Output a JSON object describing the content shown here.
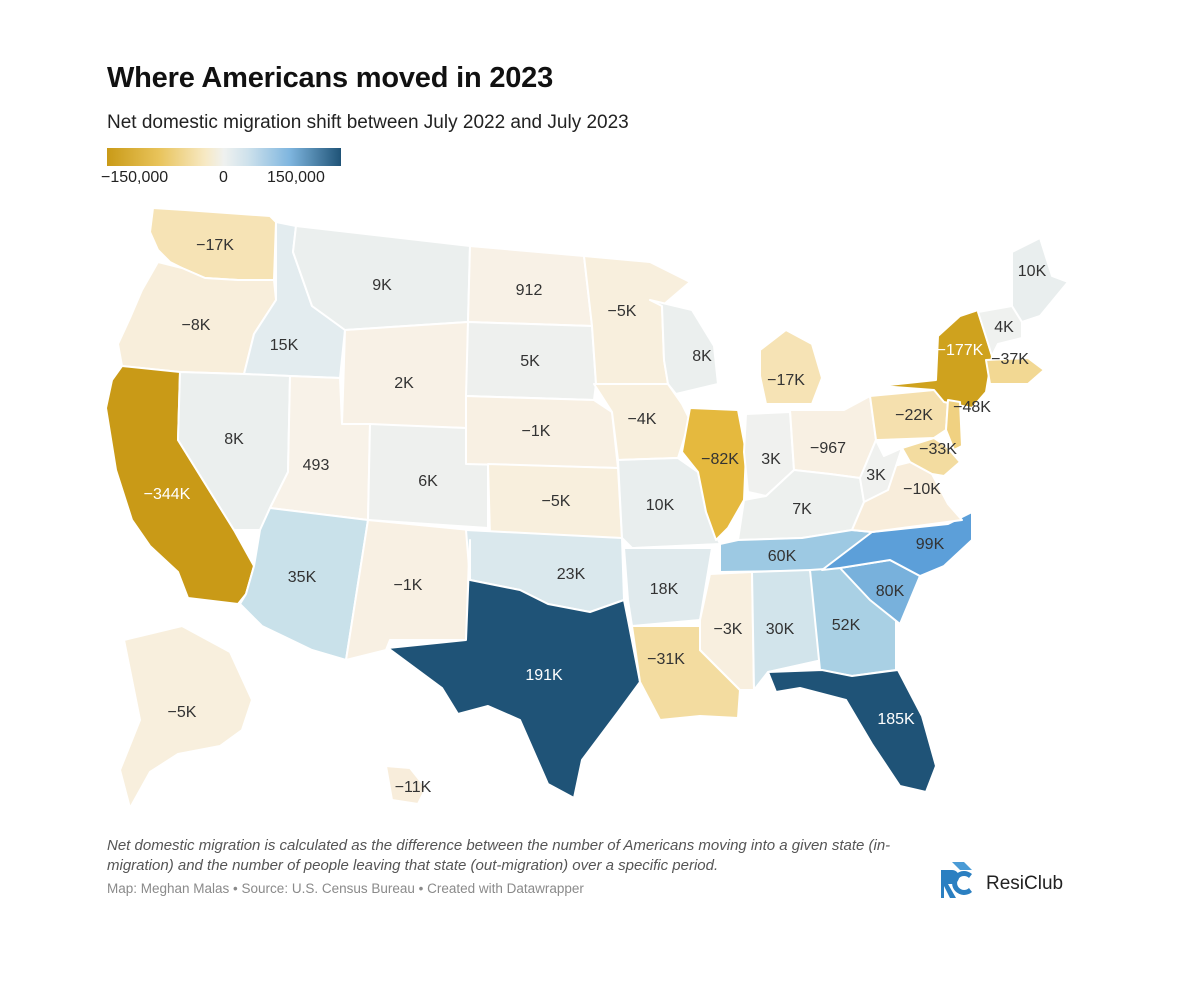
{
  "title": "Where Americans moved in 2023",
  "subtitle": "Net domestic migration shift between July 2022 and July 2023",
  "legend": {
    "min_label": "−150,000",
    "mid_label": "0",
    "max_label": "150,000",
    "colors": [
      "#c99a17",
      "#e8c35a",
      "#f7e9c4",
      "#eff1ef",
      "#cfe2ec",
      "#7fb6df",
      "#1f5377"
    ]
  },
  "states": [
    {
      "id": "WA",
      "label": "−17K",
      "value": -17000,
      "color": "#f6e3b5"
    },
    {
      "id": "OR",
      "label": "−8K",
      "value": -8000,
      "color": "#f8eedb"
    },
    {
      "id": "CA",
      "label": "−344K",
      "value": -344000,
      "color": "#c99a17"
    },
    {
      "id": "ID",
      "label": "15K",
      "value": 15000,
      "color": "#e3ecef"
    },
    {
      "id": "NV",
      "label": "8K",
      "value": 8000,
      "color": "#ebefee"
    },
    {
      "id": "MT",
      "label": "9K",
      "value": 9000,
      "color": "#ebefee"
    },
    {
      "id": "WY",
      "label": "2K",
      "value": 2000,
      "color": "#f8f1e6"
    },
    {
      "id": "UT",
      "label": "493",
      "value": 493,
      "color": "#f8f2e8"
    },
    {
      "id": "CO",
      "label": "6K",
      "value": 6000,
      "color": "#eef0ee"
    },
    {
      "id": "AZ",
      "label": "35K",
      "value": 35000,
      "color": "#c9e1ea"
    },
    {
      "id": "NM",
      "label": "−1K",
      "value": -1000,
      "color": "#f8f0e3"
    },
    {
      "id": "ND",
      "label": "912",
      "value": 912,
      "color": "#f8f1e6"
    },
    {
      "id": "SD",
      "label": "5K",
      "value": 5000,
      "color": "#eef0ee"
    },
    {
      "id": "NE",
      "label": "−1K",
      "value": -1000,
      "color": "#f8f0e3"
    },
    {
      "id": "KS",
      "label": "−5K",
      "value": -5000,
      "color": "#f8efdd"
    },
    {
      "id": "OK",
      "label": "23K",
      "value": 23000,
      "color": "#dae8ed"
    },
    {
      "id": "TX",
      "label": "191K",
      "value": 191000,
      "color": "#1f5377"
    },
    {
      "id": "MN",
      "label": "−5K",
      "value": -5000,
      "color": "#f8efdd"
    },
    {
      "id": "IA",
      "label": "−4K",
      "value": -4000,
      "color": "#f8efdd"
    },
    {
      "id": "MO",
      "label": "10K",
      "value": 10000,
      "color": "#e9eeee"
    },
    {
      "id": "AR",
      "label": "18K",
      "value": 18000,
      "color": "#e0eaed"
    },
    {
      "id": "LA",
      "label": "−31K",
      "value": -31000,
      "color": "#f3dca0"
    },
    {
      "id": "WI",
      "label": "8K",
      "value": 8000,
      "color": "#ebefee"
    },
    {
      "id": "IL",
      "label": "−82K",
      "value": -82000,
      "color": "#e5b93e"
    },
    {
      "id": "MI",
      "label": "−17K",
      "value": -17000,
      "color": "#f6e3b5"
    },
    {
      "id": "IN",
      "label": "3K",
      "value": 3000,
      "color": "#f0f1ef"
    },
    {
      "id": "OH",
      "label": "−967",
      "value": -967,
      "color": "#f8f0e3"
    },
    {
      "id": "KY",
      "label": "7K",
      "value": 7000,
      "color": "#edf0ee"
    },
    {
      "id": "TN",
      "label": "60K",
      "value": 60000,
      "color": "#9dc9e3"
    },
    {
      "id": "MS",
      "label": "−3K",
      "value": -3000,
      "color": "#f8efdf"
    },
    {
      "id": "AL",
      "label": "30K",
      "value": 30000,
      "color": "#d2e4eb"
    },
    {
      "id": "GA",
      "label": "52K",
      "value": 52000,
      "color": "#a9d0e4"
    },
    {
      "id": "FL",
      "label": "185K",
      "value": 185000,
      "color": "#1f5377"
    },
    {
      "id": "SC",
      "label": "80K",
      "value": 80000,
      "color": "#78b1dc"
    },
    {
      "id": "NC",
      "label": "99K",
      "value": 99000,
      "color": "#5c9fd9"
    },
    {
      "id": "VA",
      "label": "−10K",
      "value": -10000,
      "color": "#f8eddb"
    },
    {
      "id": "WV",
      "label": "3K",
      "value": 3000,
      "color": "#f0f1ef"
    },
    {
      "id": "PA",
      "label": "−22K",
      "value": -22000,
      "color": "#f5e0ae"
    },
    {
      "id": "NY",
      "label": "−177K",
      "value": -177000,
      "color": "#cfa21e"
    },
    {
      "id": "NJ",
      "label": "−48K",
      "value": -48000,
      "color": "#f0d181"
    },
    {
      "id": "MD",
      "label": "−33K",
      "value": -33000,
      "color": "#f3dca0"
    },
    {
      "id": "VT",
      "label": "4K",
      "value": 4000,
      "color": "#eff1ef"
    },
    {
      "id": "MA",
      "label": "−37K",
      "value": -37000,
      "color": "#f2d893"
    },
    {
      "id": "ME",
      "label": "10K",
      "value": 10000,
      "color": "#e9eeee"
    },
    {
      "id": "AK",
      "label": "−5K",
      "value": -5000,
      "color": "#f8efdd"
    },
    {
      "id": "HI",
      "label": "−11K",
      "value": -11000,
      "color": "#f8eddb"
    }
  ],
  "note": "Net domestic migration is calculated as the difference between the number of Americans moving into a given state (in-migration) and the number of people leaving that state (out-migration) over a specific period.",
  "credits": "Map: Meghan Malas • Source: U.S. Census Bureau • Created with Datawrapper",
  "logo": {
    "name": "ResiClub",
    "color": "#2b7fc1"
  }
}
